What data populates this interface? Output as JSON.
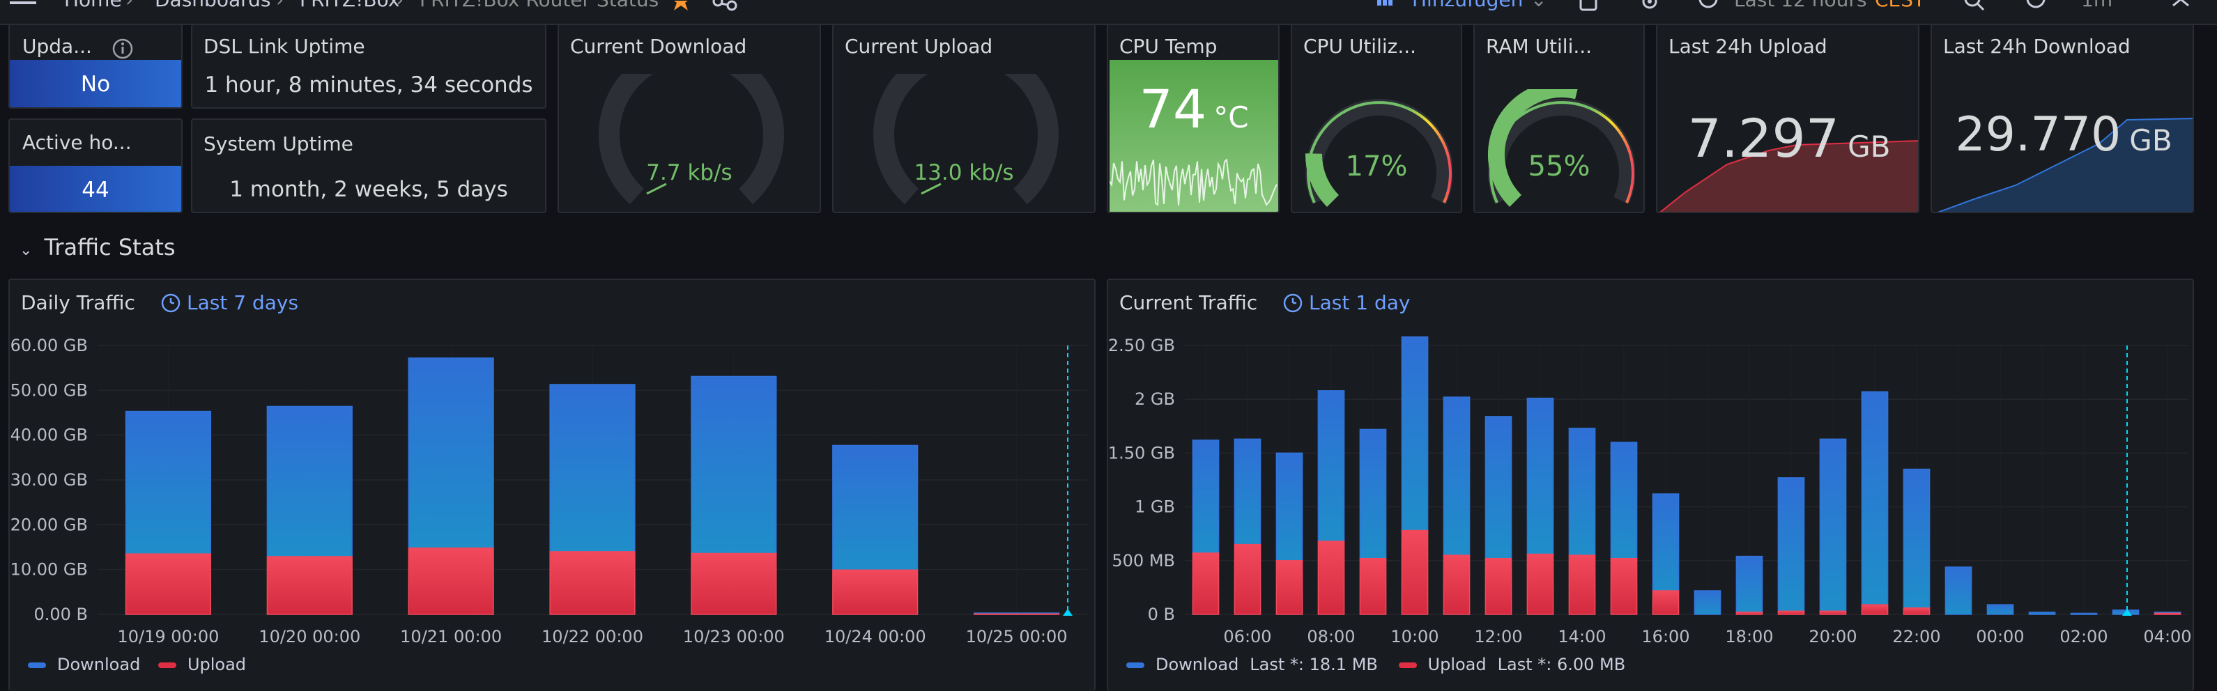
{
  "topbar": {
    "breadcrumb": [
      "Home",
      "Dashboards",
      "FRITZ!Box",
      "FRITZ!Box Router Status"
    ],
    "add_label": "Hinzufügen",
    "time_range": "Last 12 hours",
    "timezone": "CEST",
    "refresh": "1m"
  },
  "panels": {
    "update": {
      "title": "Upda...",
      "value": "No"
    },
    "active_hosts": {
      "title": "Active ho...",
      "value": "44"
    },
    "dsl_uptime": {
      "title": "DSL Link Uptime",
      "value": "1 hour, 8 minutes, 34 seconds"
    },
    "system_uptime": {
      "title": "System Uptime",
      "value": "1 month, 2 weeks, 5 days"
    },
    "current_download": {
      "title": "Current Download",
      "value": "7.7 kb/s"
    },
    "current_upload": {
      "title": "Current Upload",
      "value": "13.0 kb/s"
    },
    "cpu_temp": {
      "title": "CPU Temp",
      "value": "74",
      "unit": "°C"
    },
    "cpu_util": {
      "title": "CPU Utiliz...",
      "value": "17%",
      "level": 0.17
    },
    "ram_util": {
      "title": "RAM Utili...",
      "value": "55%",
      "level": 0.55
    },
    "last24_upload": {
      "title": "Last 24h Upload",
      "value": "7.297",
      "unit": "GB"
    },
    "last24_download": {
      "title": "Last 24h Download",
      "value": "29.770",
      "unit": "GB"
    }
  },
  "section": {
    "title": "Traffic Stats"
  },
  "colors": {
    "download": "#1f60c4",
    "download_light": "#3274d9",
    "upload": "#e02f44",
    "upload_light": "#f2495c",
    "green": "#73bf69",
    "threshold": "#00d8ff"
  },
  "daily": {
    "title": "Daily Traffic",
    "range_label": "Last 7 days",
    "legend": [
      "Download",
      "Upload"
    ]
  },
  "current": {
    "title": "Current Traffic",
    "range_label": "Last 1 day",
    "legend_download": "Download",
    "legend_download_last": "Last *: 18.1 MB",
    "legend_upload": "Upload",
    "legend_upload_last": "Last *: 6.00 MB"
  },
  "chart_data": [
    {
      "type": "bar",
      "title": "Daily Traffic",
      "categories": [
        "10/19 00:00",
        "10/20 00:00",
        "10/21 00:00",
        "10/22 00:00",
        "10/23 00:00",
        "10/24 00:00",
        "10/25 00:00"
      ],
      "series": [
        {
          "name": "Download",
          "values": [
            31.8,
            33.5,
            42.4,
            37.3,
            39.5,
            27.8,
            0.2
          ]
        },
        {
          "name": "Upload",
          "values": [
            13.5,
            12.9,
            14.8,
            14.0,
            13.6,
            9.9,
            0.1
          ]
        }
      ],
      "stacked": true,
      "yticks": [
        "0.00 B",
        "10.00 GB",
        "20.00 GB",
        "30.00 GB",
        "40.00 GB",
        "50.00 GB",
        "60.00 GB"
      ],
      "ylim": [
        0,
        60
      ],
      "legend": "bottom-left"
    },
    {
      "type": "bar",
      "title": "Current Traffic",
      "x": [
        "05:00",
        "06:00",
        "07:00",
        "08:00",
        "09:00",
        "10:00",
        "11:00",
        "12:00",
        "13:00",
        "14:00",
        "15:00",
        "16:00",
        "17:00",
        "18:00",
        "19:00",
        "20:00",
        "21:00",
        "22:00",
        "23:00",
        "00:00",
        "01:00",
        "02:00",
        "03:00",
        "04:00"
      ],
      "xticks": [
        "06:00",
        "08:00",
        "10:00",
        "12:00",
        "14:00",
        "16:00",
        "18:00",
        "20:00",
        "22:00",
        "00:00",
        "02:00",
        "04:00"
      ],
      "series": [
        {
          "name": "Download",
          "values": [
            1.05,
            0.98,
            1.0,
            1.4,
            1.2,
            1.8,
            1.47,
            1.32,
            1.45,
            1.18,
            1.08,
            0.9,
            0.22,
            0.52,
            1.24,
            1.6,
            1.98,
            1.29,
            0.44,
            0.09,
            0.02,
            0.01,
            0.04,
            0.01
          ]
        },
        {
          "name": "Upload",
          "values": [
            0.57,
            0.65,
            0.5,
            0.68,
            0.52,
            0.78,
            0.55,
            0.52,
            0.56,
            0.55,
            0.52,
            0.22,
            0.0,
            0.02,
            0.03,
            0.03,
            0.09,
            0.06,
            0.0,
            0.0,
            0.0,
            0.0,
            0.0,
            0.01
          ]
        }
      ],
      "stacked": true,
      "yticks": [
        "0 B",
        "500 MB",
        "1 GB",
        "1.50 GB",
        "2 GB",
        "2.50 GB"
      ],
      "ylim": [
        0,
        2.5
      ],
      "legend": "bottom-left"
    }
  ]
}
